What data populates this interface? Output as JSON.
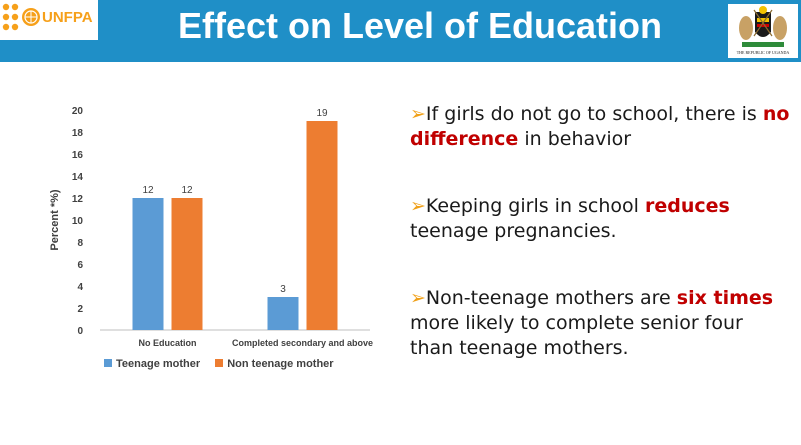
{
  "header": {
    "title": "Effect on Level of Education",
    "logo_text": "UNFPA",
    "crest_caption": "THE REPUBLIC OF UGANDA"
  },
  "colors": {
    "header_bg": "#1f8fc7",
    "teenage": "#5b9bd5",
    "non_teenage": "#ed7d31",
    "highlight": "#c00000",
    "bullet_arrow": "#f0a018"
  },
  "chart_data": {
    "type": "bar",
    "categories": [
      "No Education",
      "Completed secondary and above"
    ],
    "series": [
      {
        "name": "Teenage mother",
        "values": [
          12,
          3
        ]
      },
      {
        "name": "Non teenage mother",
        "values": [
          12,
          19
        ]
      }
    ],
    "ylabel": "Percent *%)",
    "ylim": [
      0,
      20
    ],
    "yticks": [
      0,
      2,
      4,
      6,
      8,
      10,
      12,
      14,
      16,
      18,
      20
    ],
    "grid": false,
    "data_labels": true,
    "legend": "bottom"
  },
  "bullets": [
    {
      "pre": "If girls do not go to school, there is ",
      "hl": "no difference",
      "post": " in behavior"
    },
    {
      "pre": "Keeping girls in school ",
      "hl": "reduces",
      "post": " teenage pregnancies."
    },
    {
      "pre": "Non-teenage mothers are ",
      "hl": "six times",
      "post": " more likely to complete senior four than teenage mothers."
    }
  ]
}
